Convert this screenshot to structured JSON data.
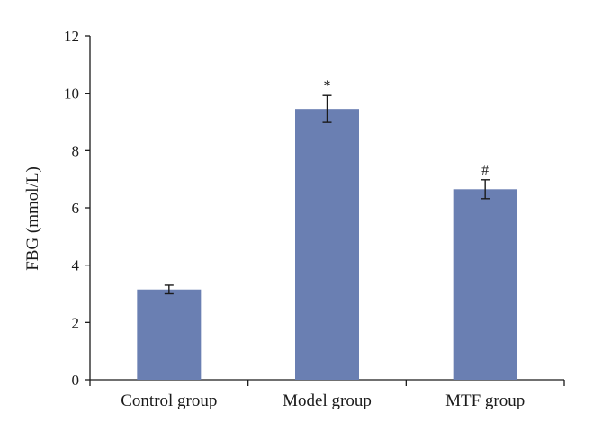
{
  "chart_data": {
    "type": "bar",
    "title": "",
    "xlabel": "",
    "ylabel": "FBG (mmol/L)",
    "ylim": [
      0,
      12
    ],
    "yticks": [
      0,
      2,
      4,
      6,
      8,
      10,
      12
    ],
    "categories": [
      "Control group",
      "Model group",
      "MTF group"
    ],
    "values": [
      3.15,
      9.45,
      6.65
    ],
    "errors": [
      0.15,
      0.47,
      0.33
    ],
    "annotations": [
      "",
      "*",
      "#"
    ],
    "bar_color": "#6a7fb2",
    "grid": false,
    "legend": "none"
  }
}
